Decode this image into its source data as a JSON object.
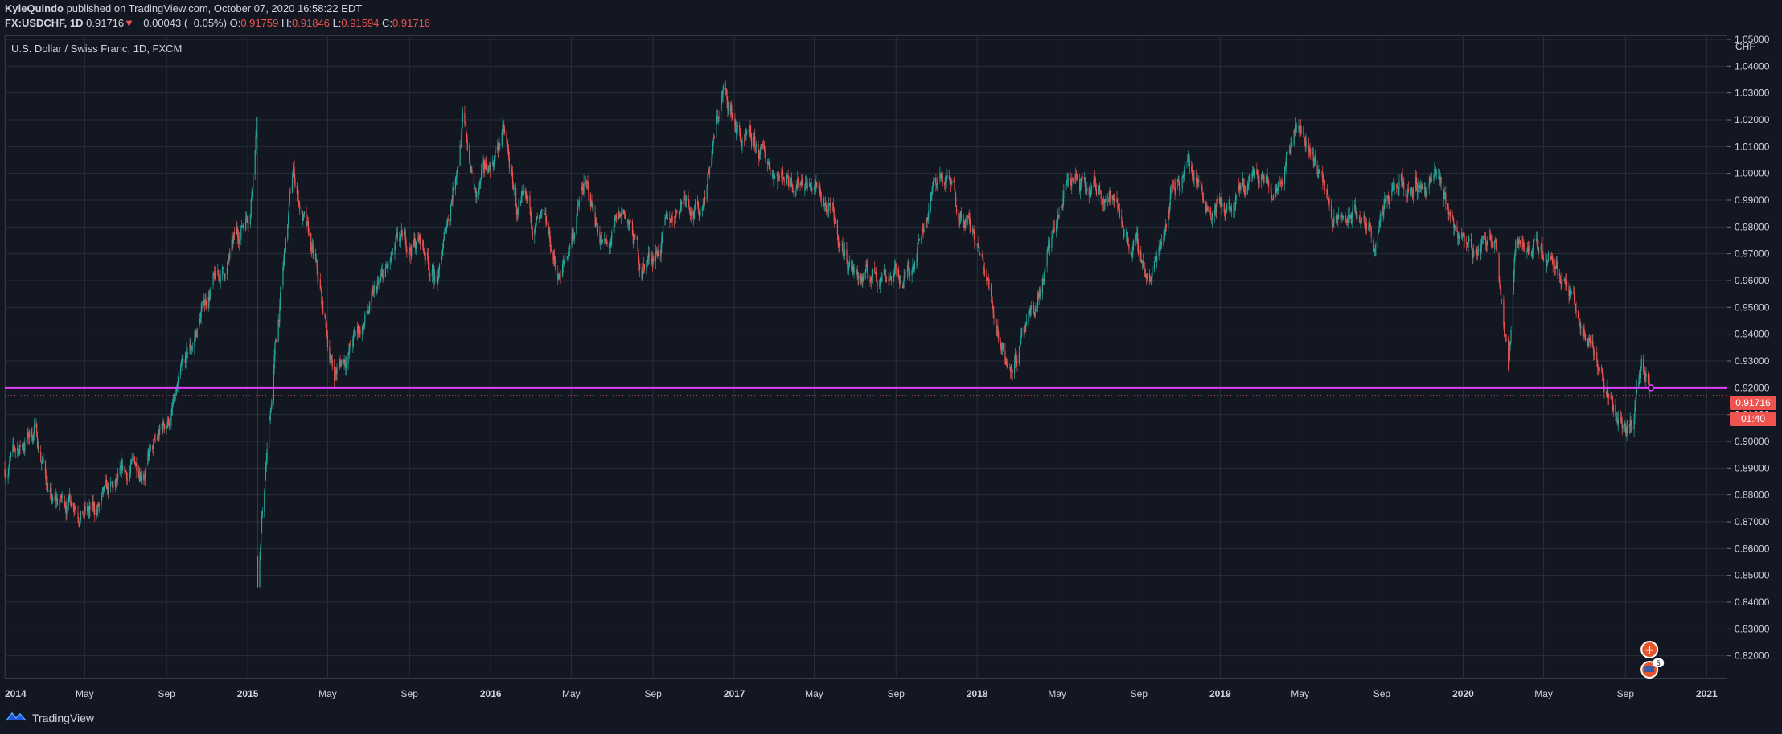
{
  "header": {
    "author": "KyleQuindo",
    "published": "published on TradingView.com, October 07, 2020 16:58:22 EDT",
    "symbol": "FX:USDCHF, 1D",
    "last": "0.91716",
    "arrow": "▼",
    "change": "−0.00043 (−0.05%)",
    "o_label": "O:",
    "o": "0.91759",
    "h_label": "H:",
    "h": "0.91846",
    "l_label": "L:",
    "l": "0.91594",
    "c_label": "C:",
    "c": "0.91716"
  },
  "pane_title": "U.S. Dollar / Swiss Franc, 1D, FXCM",
  "axis_unit": "CHF",
  "last_price_label": "0.91716",
  "countdown_label": "01:40",
  "event_badge_count": "5",
  "footer": {
    "brand": "TradingView"
  },
  "colors": {
    "background": "#131722",
    "up": "#26a69a",
    "down": "#ef5350",
    "hline": "#e040fb",
    "grid": "#2a2e39"
  },
  "chart_data": {
    "type": "candlestick",
    "xlim": [
      "2014-01-01",
      "2021-02-01"
    ],
    "ylim": [
      0.8115,
      1.0515
    ],
    "grid": true,
    "x_ticks": [
      {
        "label": "2014",
        "date": "2014-01-01",
        "bold": true
      },
      {
        "label": "May",
        "date": "2014-05-01"
      },
      {
        "label": "Sep",
        "date": "2014-09-01"
      },
      {
        "label": "2015",
        "date": "2015-01-01",
        "bold": true
      },
      {
        "label": "May",
        "date": "2015-05-01"
      },
      {
        "label": "Sep",
        "date": "2015-09-01"
      },
      {
        "label": "2016",
        "date": "2016-01-01",
        "bold": true
      },
      {
        "label": "May",
        "date": "2016-05-01"
      },
      {
        "label": "Sep",
        "date": "2016-09-01"
      },
      {
        "label": "2017",
        "date": "2017-01-01",
        "bold": true
      },
      {
        "label": "May",
        "date": "2017-05-01"
      },
      {
        "label": "Sep",
        "date": "2017-09-01"
      },
      {
        "label": "2018",
        "date": "2018-01-01",
        "bold": true
      },
      {
        "label": "May",
        "date": "2018-05-01"
      },
      {
        "label": "Sep",
        "date": "2018-09-01"
      },
      {
        "label": "2019",
        "date": "2019-01-01",
        "bold": true
      },
      {
        "label": "May",
        "date": "2019-05-01"
      },
      {
        "label": "Sep",
        "date": "2019-09-01"
      },
      {
        "label": "2020",
        "date": "2020-01-01",
        "bold": true
      },
      {
        "label": "May",
        "date": "2020-05-01"
      },
      {
        "label": "Sep",
        "date": "2020-09-01"
      },
      {
        "label": "2021",
        "date": "2021-01-01",
        "bold": true
      }
    ],
    "y_ticks": [
      "0.82000",
      "0.83000",
      "0.84000",
      "0.85000",
      "0.86000",
      "0.87000",
      "0.88000",
      "0.89000",
      "0.90000",
      "0.91000",
      "0.92000",
      "0.93000",
      "0.94000",
      "0.95000",
      "0.96000",
      "0.97000",
      "0.98000",
      "0.99000",
      "1.00000",
      "1.01000",
      "1.02000",
      "1.03000",
      "1.04000",
      "1.05000"
    ],
    "horizontal_line": 0.92,
    "last_price": 0.91716,
    "price_path": [
      [
        "2014-01-01",
        0.89
      ],
      [
        "2014-02-15",
        0.905
      ],
      [
        "2014-03-15",
        0.875
      ],
      [
        "2014-04-15",
        0.88
      ],
      [
        "2014-05-10",
        0.872
      ],
      [
        "2014-06-15",
        0.88
      ],
      [
        "2014-07-15",
        0.89
      ],
      [
        "2014-08-15",
        0.897
      ],
      [
        "2014-09-15",
        0.915
      ],
      [
        "2014-10-10",
        0.935
      ],
      [
        "2014-11-01",
        0.955
      ],
      [
        "2014-12-01",
        0.965
      ],
      [
        "2015-01-05",
        0.99
      ],
      [
        "2015-01-14",
        1.022
      ],
      [
        "2015-01-15",
        0.86
      ],
      [
        "2015-01-16",
        0.85
      ],
      [
        "2015-02-10",
        0.93
      ],
      [
        "2015-03-10",
        1.0
      ],
      [
        "2015-04-15",
        0.96
      ],
      [
        "2015-05-10",
        0.925
      ],
      [
        "2015-06-15",
        0.94
      ],
      [
        "2015-07-15",
        0.955
      ],
      [
        "2015-08-15",
        0.97
      ],
      [
        "2015-09-15",
        0.975
      ],
      [
        "2015-10-15",
        0.96
      ],
      [
        "2015-11-20",
        1.02
      ],
      [
        "2015-12-10",
        0.99
      ],
      [
        "2016-01-20",
        1.015
      ],
      [
        "2016-02-10",
        0.985
      ],
      [
        "2016-03-15",
        0.98
      ],
      [
        "2016-04-15",
        0.96
      ],
      [
        "2016-05-20",
        0.995
      ],
      [
        "2016-06-25",
        0.97
      ],
      [
        "2016-07-20",
        0.985
      ],
      [
        "2016-08-15",
        0.965
      ],
      [
        "2016-09-15",
        0.975
      ],
      [
        "2016-10-20",
        0.995
      ],
      [
        "2016-11-10",
        0.985
      ],
      [
        "2016-12-15",
        1.03
      ],
      [
        "2017-01-15",
        1.01
      ],
      [
        "2017-02-15",
        1.005
      ],
      [
        "2017-03-15",
        1.0
      ],
      [
        "2017-04-15",
        1.0
      ],
      [
        "2017-05-15",
        0.99
      ],
      [
        "2017-06-15",
        0.97
      ],
      [
        "2017-07-15",
        0.96
      ],
      [
        "2017-08-15",
        0.965
      ],
      [
        "2017-09-15",
        0.96
      ],
      [
        "2017-10-15",
        0.985
      ],
      [
        "2017-11-05",
        1.0
      ],
      [
        "2017-12-15",
        0.985
      ],
      [
        "2018-01-15",
        0.96
      ],
      [
        "2018-02-15",
        0.93
      ],
      [
        "2018-03-20",
        0.94
      ],
      [
        "2018-04-20",
        0.97
      ],
      [
        "2018-05-20",
        1.0
      ],
      [
        "2018-06-15",
        0.99
      ],
      [
        "2018-07-15",
        0.995
      ],
      [
        "2018-08-20",
        0.975
      ],
      [
        "2018-09-20",
        0.96
      ],
      [
        "2018-10-20",
        0.995
      ],
      [
        "2018-11-15",
        1.005
      ],
      [
        "2018-12-15",
        0.99
      ],
      [
        "2019-01-20",
        0.985
      ],
      [
        "2019-02-20",
        1.0
      ],
      [
        "2019-03-20",
        0.995
      ],
      [
        "2019-04-25",
        1.02
      ],
      [
        "2019-05-25",
        1.005
      ],
      [
        "2019-06-25",
        0.98
      ],
      [
        "2019-07-25",
        0.985
      ],
      [
        "2019-08-20",
        0.975
      ],
      [
        "2019-09-20",
        0.992
      ],
      [
        "2019-10-20",
        0.995
      ],
      [
        "2019-11-20",
        0.998
      ],
      [
        "2019-12-20",
        0.98
      ],
      [
        "2020-01-20",
        0.97
      ],
      [
        "2020-02-20",
        0.98
      ],
      [
        "2020-03-09",
        0.925
      ],
      [
        "2020-03-20",
        0.98
      ],
      [
        "2020-04-20",
        0.97
      ],
      [
        "2020-05-20",
        0.97
      ],
      [
        "2020-06-15",
        0.95
      ],
      [
        "2020-07-15",
        0.935
      ],
      [
        "2020-08-15",
        0.91
      ],
      [
        "2020-09-10",
        0.908
      ],
      [
        "2020-09-25",
        0.925
      ],
      [
        "2020-10-07",
        0.917
      ]
    ]
  }
}
